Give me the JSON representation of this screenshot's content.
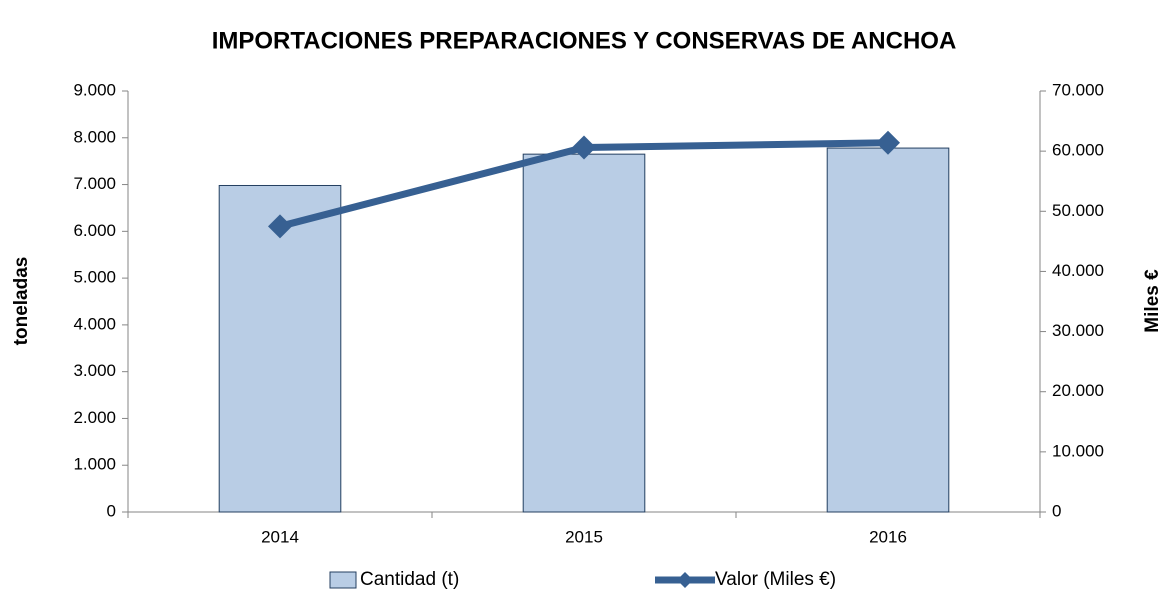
{
  "chart_data": {
    "type": "bar",
    "title": "IMPORTACIONES PREPARACIONES Y CONSERVAS DE ANCHOA",
    "ylabel": "toneladas",
    "y2label": "Miles €",
    "categories": [
      "2014",
      "2015",
      "2016"
    ],
    "series": [
      {
        "name": "Cantidad (t)",
        "type": "bar",
        "color": "#b9cde5",
        "values": [
          6980,
          7650,
          7780
        ]
      },
      {
        "name": "Valor (Miles €)",
        "type": "line",
        "axis": "y2",
        "color": "#376092",
        "values": [
          47500,
          60600,
          61400
        ]
      }
    ],
    "ylim": [
      0,
      9000
    ],
    "yticks": [
      0,
      {
        "value": 1000,
        "label": "1.000"
      },
      {
        "value": 2000,
        "label": "2.000"
      },
      {
        "value": 3000,
        "label": "3.000"
      },
      {
        "value": 4000,
        "label": "4.000"
      },
      {
        "value": 5000,
        "label": "5.000"
      },
      {
        "value": 6000,
        "label": "6.000"
      },
      {
        "value": 7000,
        "label": "7.000"
      },
      {
        "value": 8000,
        "label": "8.000"
      },
      {
        "value": 9000,
        "label": "9.000"
      }
    ],
    "y2lim": [
      0,
      70000
    ],
    "y2ticks": [
      0,
      {
        "value": 10000,
        "label": "10.000"
      },
      {
        "value": 20000,
        "label": "20.000"
      },
      {
        "value": 30000,
        "label": "30.000"
      },
      {
        "value": 40000,
        "label": "40.000"
      },
      {
        "value": 50000,
        "label": "50.000"
      },
      {
        "value": 60000,
        "label": "60.000"
      },
      {
        "value": 70000,
        "label": "70.000"
      }
    ],
    "grid": false,
    "legend": "bottom"
  }
}
